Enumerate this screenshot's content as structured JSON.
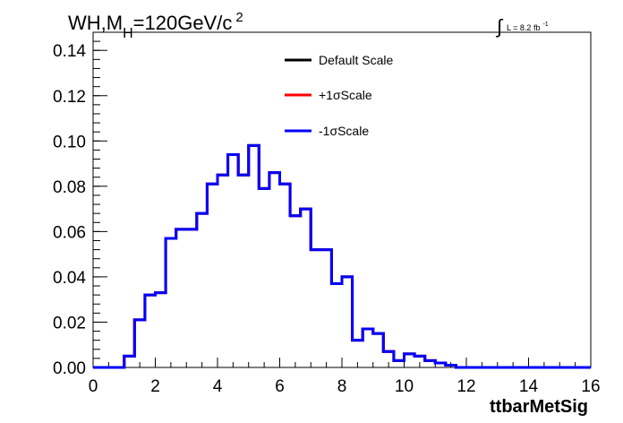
{
  "chart_data": {
    "type": "step",
    "title_parts": {
      "main": "WH,M",
      "sub": "H",
      "rest": "=120GeV/c",
      "sup": "2"
    },
    "lumi": {
      "integral": "∫",
      "text": "L = 8.2 fb",
      "sup": "-1"
    },
    "xlabel": "ttbarMetSig",
    "ylabel": "",
    "xlim": [
      0,
      16
    ],
    "ylim": [
      0,
      0.148
    ],
    "xticks": [
      0,
      2,
      4,
      6,
      8,
      10,
      12,
      14,
      16
    ],
    "xtick_labels": [
      "0",
      "2",
      "4",
      "6",
      "8",
      "10",
      "12",
      "14",
      "16"
    ],
    "yticks": [
      0,
      0.02,
      0.04,
      0.06,
      0.08,
      0.1,
      0.12,
      0.14
    ],
    "ytick_labels": [
      "0.00",
      "0.02",
      "0.04",
      "0.06",
      "0.08",
      "0.10",
      "0.12",
      "0.14"
    ],
    "bin_edges": [
      0,
      0.333,
      0.667,
      1.0,
      1.333,
      1.667,
      2.0,
      2.333,
      2.667,
      3.0,
      3.333,
      3.667,
      4.0,
      4.333,
      4.667,
      5.0,
      5.333,
      5.667,
      6.0,
      6.333,
      6.667,
      7.0,
      7.333,
      7.667,
      8.0,
      8.333,
      8.667,
      9.0,
      9.333,
      9.667,
      10.0,
      10.333,
      10.667,
      11.0,
      11.333,
      11.667,
      12.0,
      12.333,
      12.667,
      13.0,
      13.333,
      13.667,
      14.0,
      14.333,
      14.667,
      15.0,
      15.333,
      15.667,
      16.0
    ],
    "series": [
      {
        "name": "Default Scale",
        "color": "#000000",
        "values": [
          0,
          0,
          0,
          0.005,
          0.021,
          0.032,
          0.033,
          0.057,
          0.061,
          0.061,
          0.068,
          0.081,
          0.085,
          0.094,
          0.085,
          0.098,
          0.079,
          0.086,
          0.081,
          0.067,
          0.07,
          0.052,
          0.052,
          0.037,
          0.04,
          0.012,
          0.017,
          0.015,
          0.007,
          0.003,
          0.006,
          0.005,
          0.003,
          0.002,
          0.001,
          0,
          0,
          0,
          0,
          0,
          0,
          0,
          0,
          0,
          0,
          0,
          0,
          0
        ]
      },
      {
        "name": "+1σScale",
        "color": "#ff0000",
        "values": [
          0,
          0,
          0,
          0.005,
          0.021,
          0.032,
          0.033,
          0.057,
          0.061,
          0.061,
          0.068,
          0.081,
          0.085,
          0.094,
          0.085,
          0.098,
          0.079,
          0.086,
          0.081,
          0.067,
          0.07,
          0.052,
          0.052,
          0.037,
          0.04,
          0.012,
          0.017,
          0.015,
          0.007,
          0.003,
          0.006,
          0.005,
          0.003,
          0.002,
          0.001,
          0,
          0,
          0,
          0,
          0,
          0,
          0,
          0,
          0,
          0,
          0,
          0,
          0
        ]
      },
      {
        "name": "-1σScale",
        "color": "#0000ff",
        "values": [
          0,
          0,
          0,
          0.005,
          0.021,
          0.032,
          0.033,
          0.057,
          0.061,
          0.061,
          0.068,
          0.081,
          0.085,
          0.094,
          0.085,
          0.098,
          0.079,
          0.086,
          0.081,
          0.067,
          0.07,
          0.052,
          0.052,
          0.037,
          0.04,
          0.012,
          0.017,
          0.015,
          0.007,
          0.003,
          0.006,
          0.005,
          0.003,
          0.002,
          0.001,
          0,
          0,
          0,
          0,
          0,
          0,
          0,
          0,
          0,
          0,
          0,
          0,
          0
        ]
      }
    ],
    "legend_position": "top-center",
    "grid": false
  }
}
